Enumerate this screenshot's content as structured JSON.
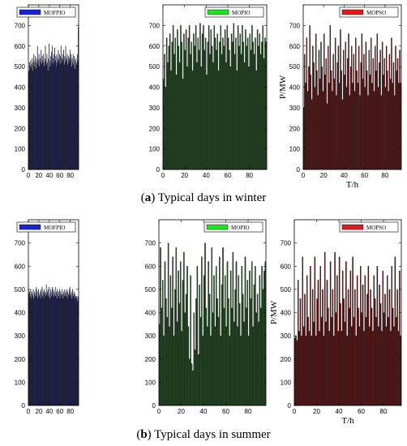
{
  "captions": [
    {
      "letter": "a",
      "text": ") Typical days in winter"
    },
    {
      "letter": "b",
      "text": ") Typical days in summer"
    }
  ],
  "colors": {
    "MOFPIO": "#1a1f7a",
    "MOPIO": "#1f4a1f",
    "MOPSO": "#5a1414",
    "legend_MOFPIO": "#1c22d6",
    "legend_MOPIO": "#22e022",
    "legend_MOPSO": "#e01a1a"
  },
  "chart_data": [
    {
      "id": "winter-mofpio",
      "type": "bar",
      "legend": "MOFPIO",
      "color_key": "MOFPIO",
      "ylim": [
        0,
        800
      ],
      "yticks": [
        0,
        100,
        200,
        300,
        400,
        500,
        600,
        700
      ],
      "xlim": [
        0,
        96
      ],
      "xticks": [
        0,
        20,
        40,
        60,
        80
      ],
      "xlabel": "",
      "ylabel": "",
      "x_start": 1,
      "x_step": 1,
      "values": [
        470,
        480,
        520,
        500,
        530,
        490,
        510,
        540,
        480,
        520,
        560,
        500,
        530,
        550,
        490,
        520,
        540,
        600,
        510,
        530,
        560,
        500,
        540,
        520,
        580,
        510,
        550,
        530,
        560,
        520,
        500,
        540,
        600,
        530,
        510,
        560,
        520,
        480,
        540,
        610,
        530,
        500,
        550,
        520,
        570,
        600,
        510,
        540,
        560,
        520,
        590,
        530,
        550,
        500,
        560,
        520,
        540,
        580,
        530,
        560,
        510,
        550,
        600,
        520,
        540,
        560,
        530,
        580,
        510,
        550,
        520,
        600,
        540,
        530,
        560,
        510,
        550,
        520,
        540,
        580,
        530,
        560,
        500,
        540,
        520,
        560,
        510,
        550,
        530,
        490,
        540,
        520,
        510,
        560,
        530,
        690
      ]
    },
    {
      "id": "winter-mopio",
      "type": "bar",
      "legend": "MOPIO",
      "color_key": "MOPIO",
      "ylim": [
        0,
        800
      ],
      "yticks": [
        0,
        100,
        200,
        300,
        400,
        500,
        600,
        700
      ],
      "xlim": [
        0,
        96
      ],
      "xticks": [
        0,
        20,
        40,
        60,
        80
      ],
      "xlabel": "",
      "ylabel": "",
      "x_start": 1,
      "x_step": 1,
      "values": [
        440,
        560,
        400,
        640,
        520,
        600,
        660,
        480,
        620,
        700,
        560,
        640,
        460,
        680,
        600,
        520,
        700,
        620,
        440,
        660,
        580,
        680,
        500,
        640,
        700,
        560,
        620,
        480,
        660,
        600,
        700,
        520,
        640,
        580,
        710,
        500,
        660,
        700,
        580,
        640,
        460,
        620,
        700,
        560,
        680,
        600,
        520,
        700,
        640,
        580,
        660,
        480,
        620,
        700,
        560,
        640,
        600,
        680,
        520,
        700,
        640,
        580,
        500,
        660,
        620,
        710,
        560,
        640,
        480,
        700,
        600,
        660,
        560,
        700,
        620,
        520,
        680,
        600,
        640,
        500,
        660,
        580,
        700,
        620,
        560,
        640,
        480,
        680,
        600,
        660,
        560,
        620,
        700,
        540,
        640,
        620
      ]
    },
    {
      "id": "winter-mopso",
      "type": "bar",
      "legend": "MOPSO",
      "color_key": "MOPSO",
      "ylim": [
        0,
        800
      ],
      "yticks": [
        0,
        100,
        200,
        300,
        400,
        500,
        600,
        700
      ],
      "xlim": [
        0,
        96
      ],
      "xticks": [
        0,
        20,
        40,
        60,
        80
      ],
      "xlabel": "T/h",
      "ylabel": "P/MW",
      "x_start": 1,
      "x_step": 1,
      "values": [
        300,
        560,
        420,
        640,
        380,
        500,
        700,
        460,
        340,
        600,
        520,
        400,
        660,
        480,
        360,
        580,
        440,
        620,
        500,
        380,
        660,
        460,
        540,
        320,
        600,
        420,
        700,
        480,
        380,
        560,
        440,
        640,
        360,
        520,
        600,
        420,
        680,
        480,
        340,
        580,
        460,
        620,
        400,
        540,
        660,
        360,
        500,
        600,
        420,
        560,
        380,
        640,
        480,
        420,
        600,
        360,
        520,
        660,
        440,
        560,
        400,
        620,
        480,
        360,
        580,
        460,
        640,
        420,
        540,
        380,
        600,
        480,
        660,
        400,
        520,
        580,
        360,
        620,
        460,
        540,
        400,
        600,
        480,
        380,
        560,
        440,
        640,
        420,
        520,
        360,
        600,
        480,
        540,
        420,
        580,
        420
      ]
    },
    {
      "id": "summer-mofpio",
      "type": "bar",
      "legend": "MOFPIO",
      "color_key": "MOFPIO",
      "ylim": [
        0,
        800
      ],
      "yticks": [
        0,
        100,
        200,
        300,
        400,
        500,
        600,
        700
      ],
      "xlim": [
        0,
        96
      ],
      "xticks": [
        0,
        20,
        40,
        60,
        80
      ],
      "xlabel": "",
      "ylabel": "",
      "x_start": 1,
      "x_step": 1,
      "values": [
        500,
        480,
        490,
        470,
        500,
        460,
        490,
        480,
        470,
        500,
        460,
        490,
        480,
        470,
        500,
        510,
        470,
        490,
        460,
        500,
        480,
        470,
        490,
        460,
        500,
        480,
        510,
        470,
        490,
        460,
        500,
        480,
        490,
        470,
        520,
        480,
        490,
        500,
        470,
        510,
        480,
        460,
        500,
        490,
        470,
        510,
        480,
        500,
        470,
        490,
        480,
        510,
        470,
        490,
        460,
        500,
        480,
        490,
        470,
        500,
        460,
        490,
        480,
        470,
        500,
        480,
        460,
        490,
        470,
        500,
        480,
        490,
        470,
        500,
        460,
        490,
        480,
        470,
        500,
        510,
        480,
        470,
        490,
        460,
        500,
        480,
        470,
        490,
        460,
        480,
        470,
        460,
        470,
        450,
        470,
        460
      ]
    },
    {
      "id": "summer-mopio",
      "type": "bar",
      "legend": "MOPIO",
      "color_key": "MOPIO",
      "ylim": [
        0,
        800
      ],
      "yticks": [
        0,
        100,
        200,
        300,
        400,
        500,
        600,
        700
      ],
      "xlim": [
        0,
        96
      ],
      "xticks": [
        0,
        20,
        40,
        60,
        80
      ],
      "xlabel": "",
      "ylabel": "",
      "x_start": 1,
      "x_step": 1,
      "values": [
        350,
        680,
        420,
        540,
        300,
        620,
        460,
        380,
        700,
        340,
        560,
        420,
        640,
        300,
        500,
        680,
        360,
        580,
        440,
        620,
        320,
        540,
        660,
        400,
        480,
        600,
        340,
        200,
        560,
        180,
        150,
        400,
        240,
        460,
        600,
        220,
        520,
        380,
        640,
        300,
        560,
        700,
        420,
        340,
        620,
        480,
        300,
        680,
        400,
        560,
        340,
        600,
        460,
        380,
        640,
        300,
        520,
        680,
        420,
        560,
        340,
        620,
        460,
        300,
        580,
        420,
        660,
        360,
        500,
        620,
        340,
        560,
        440,
        300,
        600,
        480,
        360,
        640,
        420,
        540,
        300,
        580,
        460,
        620,
        340,
        520,
        600,
        400,
        480,
        360,
        560,
        420,
        600,
        500,
        580,
        620
      ]
    },
    {
      "id": "summer-mopso",
      "type": "bar",
      "legend": "MOPSO",
      "color_key": "MOPSO",
      "ylim": [
        0,
        800
      ],
      "yticks": [
        0,
        100,
        200,
        300,
        400,
        500,
        600,
        700
      ],
      "xlim": [
        0,
        96
      ],
      "xticks": [
        0,
        20,
        40,
        60,
        80
      ],
      "xlabel": "T/h",
      "ylabel": "P/MW",
      "x_start": 1,
      "x_step": 1,
      "values": [
        290,
        300,
        280,
        540,
        320,
        460,
        300,
        640,
        340,
        480,
        300,
        560,
        380,
        320,
        600,
        300,
        500,
        360,
        640,
        300,
        460,
        540,
        320,
        600,
        380,
        500,
        300,
        660,
        360,
        540,
        420,
        320,
        620,
        380,
        500,
        300,
        660,
        400,
        560,
        320,
        640,
        440,
        320,
        580,
        460,
        360,
        620,
        300,
        500,
        420,
        580,
        340,
        640,
        380,
        500,
        300,
        560,
        420,
        340,
        600,
        400,
        520,
        320,
        560,
        380,
        480,
        600,
        340,
        500,
        420,
        320,
        560,
        460,
        380,
        600,
        340,
        520,
        440,
        320,
        580,
        400,
        480,
        340,
        560,
        380,
        500,
        320,
        600,
        420,
        340,
        640,
        380,
        500,
        320,
        580,
        300
      ]
    }
  ]
}
